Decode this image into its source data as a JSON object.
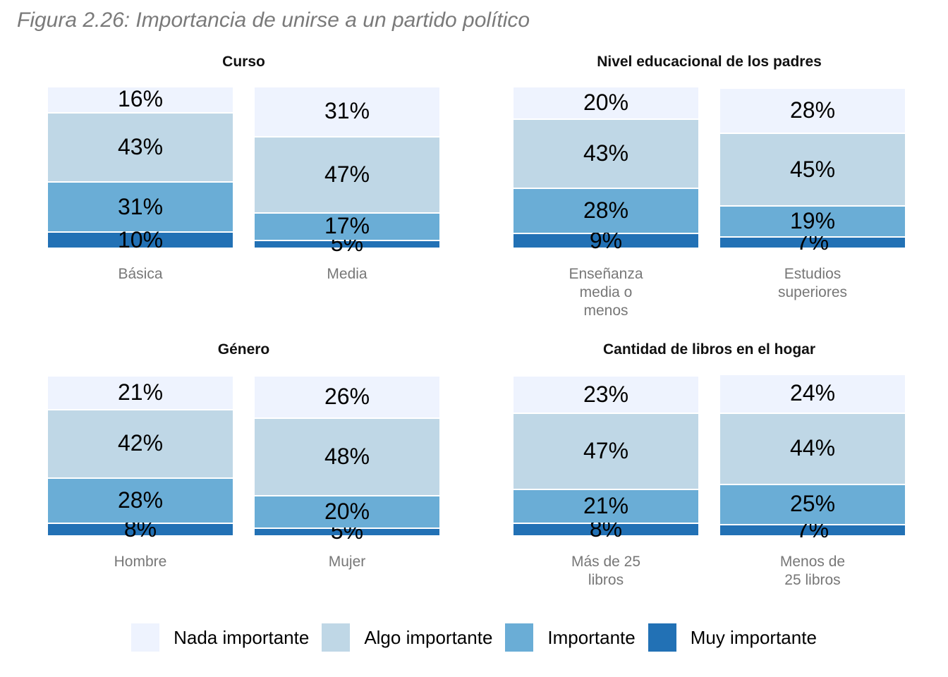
{
  "title": "Figura 2.26: Importancia de unirse a un partido político",
  "legend": {
    "position": "bottom",
    "entries": [
      {
        "name": "Nada importante",
        "color": "#eef3fe"
      },
      {
        "name": "Algo importante",
        "color": "#bfd7e6"
      },
      {
        "name": "Importante",
        "color": "#6aadd6"
      },
      {
        "name": "Muy importante",
        "color": "#2271b5"
      }
    ]
  },
  "chart_data": [
    {
      "type": "bar",
      "stacked": true,
      "title": "Curso",
      "categories": [
        "Básica",
        "Media"
      ],
      "ylim": [
        0,
        100
      ],
      "series": [
        {
          "values": [
            16,
            31
          ],
          "value_labels": [
            "16%",
            "31%"
          ]
        },
        {
          "values": [
            43,
            47
          ],
          "value_labels": [
            "43%",
            "47%"
          ]
        },
        {
          "values": [
            31,
            17
          ],
          "value_labels": [
            "31%",
            "17%"
          ]
        },
        {
          "values": [
            10,
            5
          ],
          "value_labels": [
            "10%",
            "5%"
          ]
        }
      ]
    },
    {
      "type": "bar",
      "stacked": true,
      "title": "Nivel educacional de los padres",
      "categories": [
        "Enseñanza media o menos",
        "Estudios superiores"
      ],
      "ylim": [
        0,
        100
      ],
      "series": [
        {
          "values": [
            20,
            28
          ],
          "value_labels": [
            "20%",
            "28%"
          ]
        },
        {
          "values": [
            43,
            45
          ],
          "value_labels": [
            "43%",
            "45%"
          ]
        },
        {
          "values": [
            28,
            19
          ],
          "value_labels": [
            "28%",
            "19%"
          ]
        },
        {
          "values": [
            9,
            7
          ],
          "value_labels": [
            "9%",
            "7%"
          ]
        }
      ]
    },
    {
      "type": "bar",
      "stacked": true,
      "title": "Género",
      "categories": [
        "Hombre",
        "Mujer"
      ],
      "ylim": [
        0,
        100
      ],
      "series": [
        {
          "values": [
            21,
            26
          ],
          "value_labels": [
            "21%",
            "26%"
          ]
        },
        {
          "values": [
            42,
            48
          ],
          "value_labels": [
            "42%",
            "48%"
          ]
        },
        {
          "values": [
            28,
            20
          ],
          "value_labels": [
            "28%",
            "20%"
          ]
        },
        {
          "values": [
            8,
            5
          ],
          "value_labels": [
            "8%",
            "5%"
          ]
        }
      ]
    },
    {
      "type": "bar",
      "stacked": true,
      "title": "Cantidad de libros en el hogar",
      "categories": [
        "Más de 25 libros",
        "Menos de 25 libros"
      ],
      "ylim": [
        0,
        100
      ],
      "series": [
        {
          "values": [
            23,
            24
          ],
          "value_labels": [
            "23%",
            "24%"
          ]
        },
        {
          "values": [
            47,
            44
          ],
          "value_labels": [
            "47%",
            "44%"
          ]
        },
        {
          "values": [
            21,
            25
          ],
          "value_labels": [
            "21%",
            "25%"
          ]
        },
        {
          "values": [
            8,
            7
          ],
          "value_labels": [
            "8%",
            "7%"
          ]
        }
      ]
    }
  ]
}
